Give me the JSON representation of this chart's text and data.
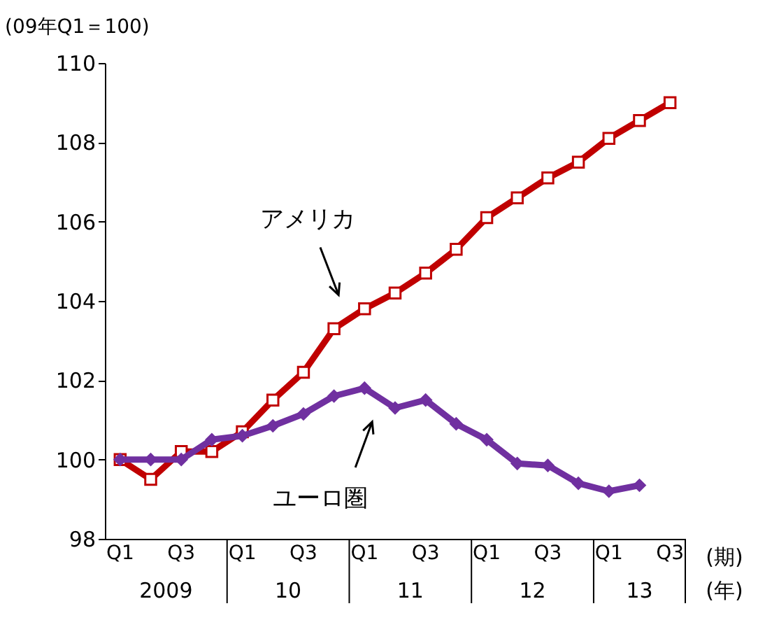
{
  "chart_data": {
    "type": "line",
    "ylabel": "(09年Q1＝100)",
    "categories": [
      "Q1",
      null,
      "Q3",
      null,
      "Q1",
      null,
      "Q3",
      null,
      "Q1",
      null,
      "Q3",
      null,
      "Q1",
      null,
      "Q3",
      null,
      "Q1",
      null,
      "Q3"
    ],
    "series": [
      {
        "name": "アメリカ",
        "color": "#c00000",
        "marker": "square",
        "values": [
          100.0,
          99.5,
          100.2,
          100.2,
          100.7,
          101.5,
          102.2,
          103.3,
          103.8,
          104.2,
          104.7,
          105.3,
          106.1,
          106.6,
          107.1,
          107.5,
          108.1,
          108.55,
          109.0
        ]
      },
      {
        "name": "ユーロ圏",
        "color": "#7030a0",
        "marker": "diamond",
        "values": [
          100.0,
          100.0,
          100.0,
          100.5,
          100.6,
          100.85,
          101.15,
          101.6,
          101.8,
          101.3,
          101.5,
          100.9,
          100.5,
          99.9,
          99.85,
          99.4,
          99.2,
          99.35,
          null
        ]
      }
    ],
    "ylim": [
      98,
      110
    ],
    "yticks": [
      98,
      100,
      102,
      104,
      106,
      108,
      110
    ],
    "grid": false,
    "annotations": [
      "(期)",
      "2009",
      "10",
      "11",
      "12",
      "13",
      "(年)"
    ]
  }
}
